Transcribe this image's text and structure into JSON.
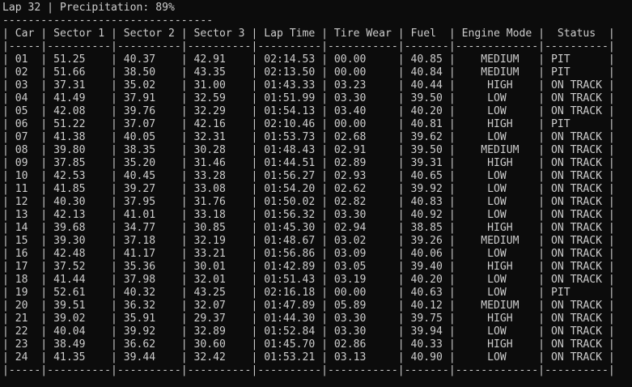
{
  "terminal": {
    "lines": [
      "Lap 32 | Precipitation: 89%",
      "---------------------------------",
      "| Car | Sector 1 | Sector 2 | Sector 3 | Lap Time | Tire Wear | Fuel | Engine Mode | Status |",
      "|-----|----------|----------|----------|----------|-----------|------|-------------|--------|",
      "| 01 | 51.25 | 40.37 | 42.91 | 02:14.53 | 00.00 | 40.85 | MEDIUM | PIT |",
      "| 02 | 51.66 | 38.50 | 43.35 | 02:13.50 | 00.00 | 40.84 | MEDIUM | PIT |",
      "| 03 | 37.31 | 35.02 | 31.00 | 01:43.33 | 03.23 | 40.44 | HIGH | ON TRACK |",
      "| 04 | 41.49 | 37.91 | 32.59 | 01:51.99 | 03.30 | 39.50 | LOW | ON TRACK |",
      "| 05 | 42.08 | 39.76 | 32.29 | 01:54.13 | 03.40 | 40.20 | LOW | ON TRACK |",
      "| 06 | 51.22 | 37.07 | 42.16 | 02:10.46 | 00.00 | 40.81 | HIGH | PIT |",
      "| 07 | 41.38 | 40.05 | 32.31 | 01:53.73 | 02.68 | 39.62 | LOW | ON TRACK |",
      "| 08 | 39.80 | 38.35 | 30.28 | 01:48.43 | 02.91 | 39.50 | MEDIUM | ON TRACK |",
      "| 09 | 37.85 | 35.20 | 31.46 | 01:44.51 | 02.89 | 39.31 | HIGH | ON TRACK |",
      "| 10 | 42.53 | 40.45 | 33.28 | 01:56.27 | 02.93 | 40.65 | LOW | ON TRACK |",
      "| 11 | 41.85 | 39.27 | 33.08 | 01:54.20 | 02.62 | 39.92 | LOW | ON TRACK |",
      "| 12 | 40.30 | 37.95 | 31.76 | 01:50.02 | 02.82 | 40.83 | LOW | ON TRACK |",
      "| 13 | 42.13 | 41.01 | 33.18 | 01:56.32 | 03.30 | 40.92 | LOW | ON TRACK |",
      "| 14 | 39.68 | 34.77 | 30.85 | 01:45.30 | 02.94 | 38.85 | HIGH | ON TRACK |",
      "| 15 | 39.30 | 37.18 | 32.19 | 01:48.67 | 03.02 | 39.26 | MEDIUM | ON TRACK |",
      "| 16 | 42.48 | 41.17 | 33.21 | 01:56.86 | 03.09 | 40.06 | LOW | ON TRACK |",
      "| 17 | 37.52 | 35.36 | 30.01 | 01:42.89 | 03.05 | 39.40 | HIGH | ON TRACK |",
      "| 18 | 41.44 | 37.98 | 32.01 | 01:51.43 | 03.19 | 40.20 | LOW | ON TRACK |",
      "| 19 | 52.61 | 40.32 | 43.25 | 02:16.18 | 00.00 | 40.63 | LOW | PIT |",
      "| 20 | 39.51 | 36.32 | 32.07 | 01:47.89 | 05.89 | 40.12 | MEDIUM | ON TRACK |",
      "| 21 | 39.02 | 35.91 | 29.37 | 01:44.30 | 03.30 | 39.75 | HIGH | ON TRACK |",
      "| 22 | 40.04 | 39.92 | 32.89 | 01:52.84 | 03.30 | 39.94 | LOW | ON TRACK |",
      "| 23 | 38.49 | 36.62 | 30.60 | 01:45.70 | 02.86 | 40.33 | HIGH | ON TRACK |",
      "| 24 | 41.35 | 39.44 | 32.42 | 01:53.21 | 03.13 | 40.90 | LOW | ON TRACK |",
      "|-----|----------|----------|----------|----------|-----------|------|-------------|--------|"
    ]
  }
}
